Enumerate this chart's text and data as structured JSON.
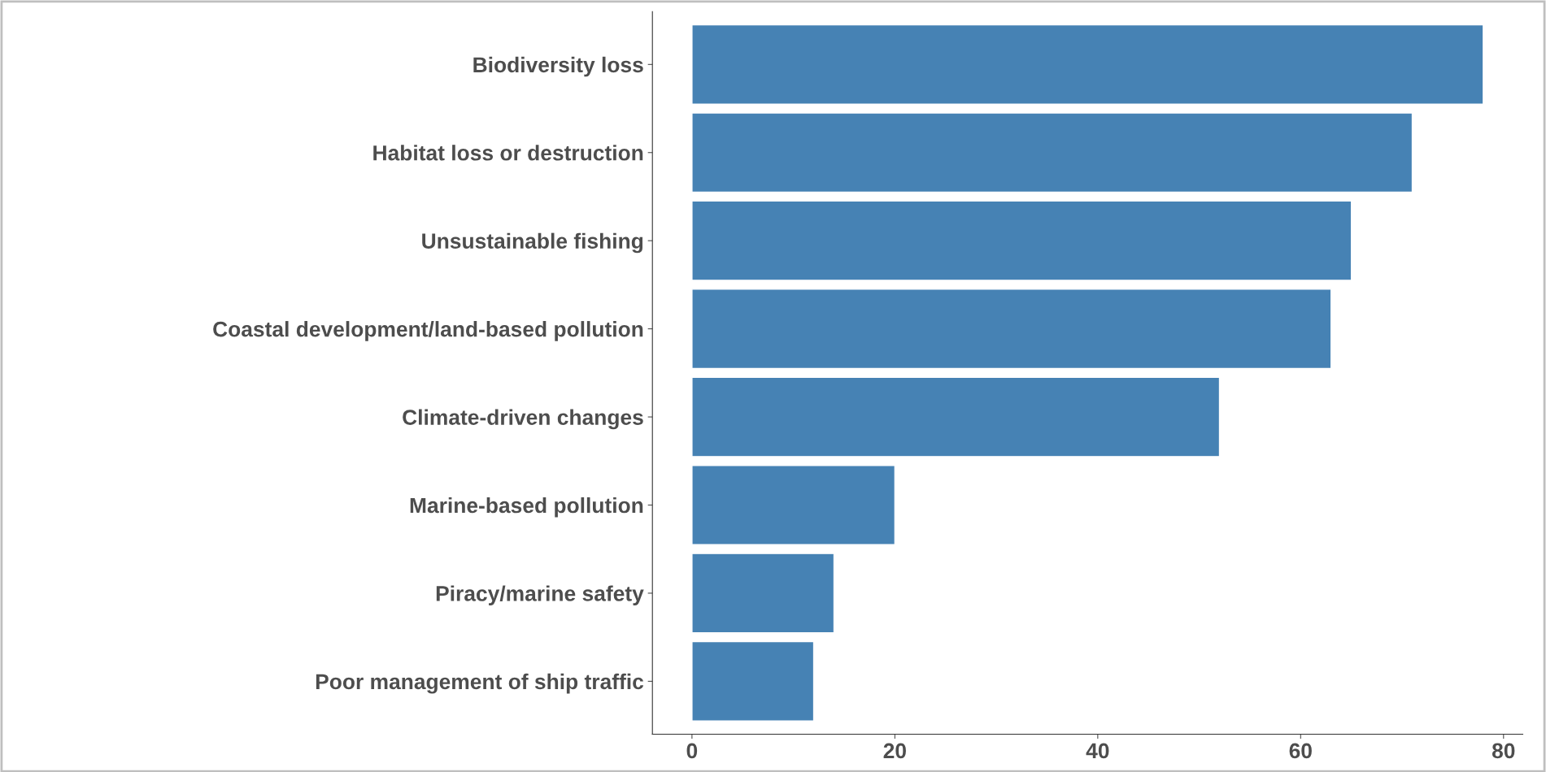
{
  "chart_data": {
    "type": "bar",
    "orientation": "horizontal",
    "categories": [
      "Biodiversity loss",
      "Habitat loss or destruction",
      "Unsustainable fishing",
      "Coastal development/land-based pollution",
      "Climate-driven changes",
      "Marine-based pollution",
      "Piracy/marine safety",
      "Poor management of ship traffic"
    ],
    "values": [
      78,
      71,
      65,
      63,
      52,
      20,
      14,
      12
    ],
    "color": "#4682b4",
    "xlim": [
      -3.9,
      81.9
    ],
    "xticks": [
      0,
      20,
      40,
      60,
      80
    ],
    "grid": false,
    "legend": false
  }
}
